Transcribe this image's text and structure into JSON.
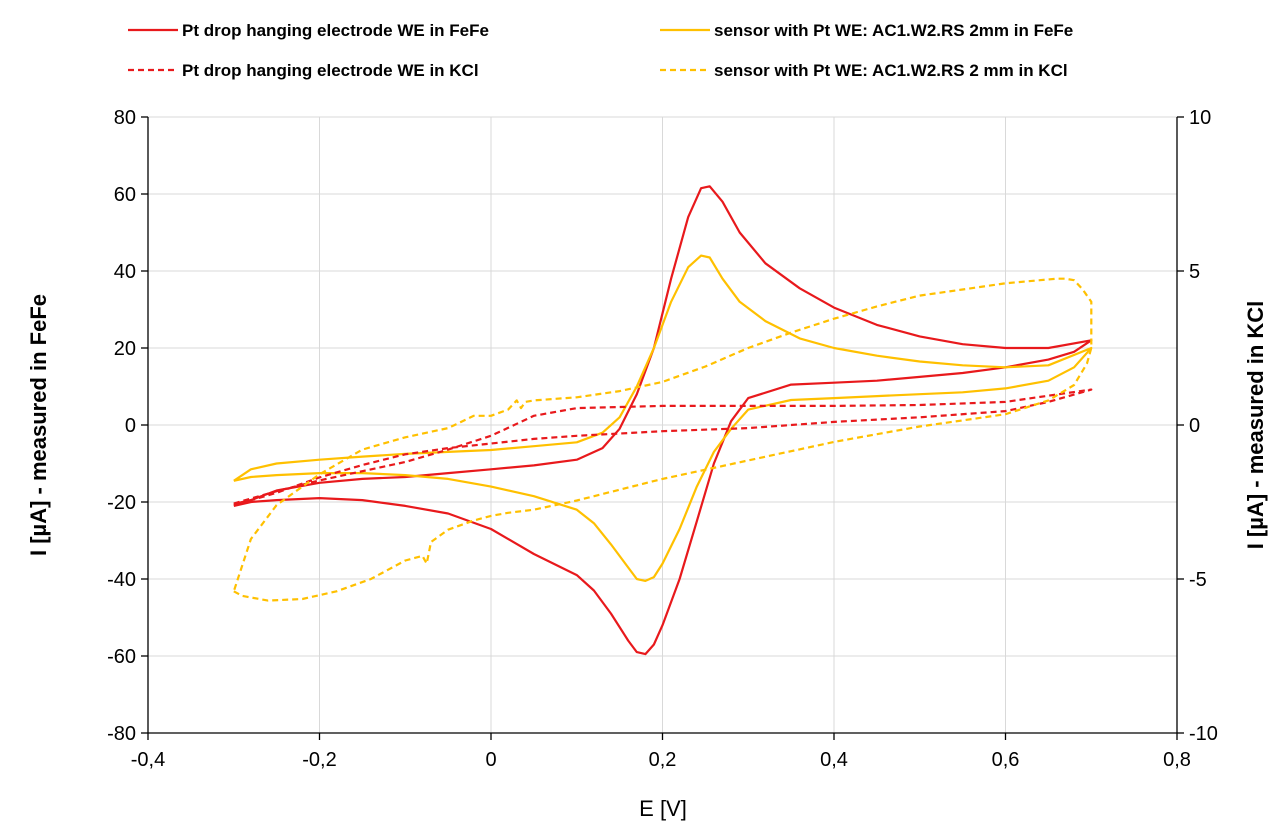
{
  "chart_data": {
    "type": "line",
    "xlabel": "E [V]",
    "ylabel": "I [µA] - measured in FeFe",
    "y2label": "I [µA] - measured in KCl",
    "xlim": [
      -0.4,
      0.8
    ],
    "ylim": [
      -80,
      80
    ],
    "y2lim": [
      -10,
      10
    ],
    "x_ticks": [
      -0.4,
      -0.2,
      0,
      0.2,
      0.4,
      0.6,
      0.8
    ],
    "x_tick_labels": [
      "-0,4",
      "-0,2",
      "0",
      "0,2",
      "0,4",
      "0,6",
      "0,8"
    ],
    "y_ticks": [
      -80,
      -60,
      -40,
      -20,
      0,
      20,
      40,
      60,
      80
    ],
    "y_tick_labels": [
      "-80",
      "-60",
      "-40",
      "-20",
      "0",
      "20",
      "40",
      "60",
      "80"
    ],
    "y2_ticks": [
      -10,
      -5,
      0,
      5,
      10
    ],
    "y2_tick_labels": [
      "-10",
      "-5",
      "0",
      "5",
      "10"
    ],
    "grid": true,
    "legend_position": "top",
    "series": [
      {
        "name": "Pt drop hanging electrode WE in FeFe",
        "color": "#e8191c",
        "dash": "solid",
        "axis": "left",
        "x": [
          -0.3,
          -0.28,
          -0.25,
          -0.2,
          -0.15,
          -0.1,
          -0.05,
          0,
          0.05,
          0.1,
          0.13,
          0.15,
          0.17,
          0.19,
          0.21,
          0.23,
          0.245,
          0.255,
          0.27,
          0.29,
          0.32,
          0.36,
          0.4,
          0.45,
          0.5,
          0.55,
          0.6,
          0.65,
          0.7,
          0.7,
          0.68,
          0.65,
          0.6,
          0.55,
          0.5,
          0.45,
          0.4,
          0.35,
          0.3,
          0.28,
          0.26,
          0.24,
          0.22,
          0.2,
          0.19,
          0.18,
          0.17,
          0.16,
          0.14,
          0.12,
          0.1,
          0.05,
          0,
          -0.05,
          -0.1,
          -0.15,
          -0.2,
          -0.25,
          -0.28,
          -0.3
        ],
        "y": [
          -20.5,
          -19.5,
          -17,
          -15,
          -14,
          -13.5,
          -12.5,
          -11.5,
          -10.5,
          -9,
          -6,
          -1,
          8,
          20,
          38,
          54,
          61.5,
          62,
          58,
          50,
          42,
          35.5,
          30.5,
          26,
          23,
          21,
          20,
          20,
          22,
          22,
          19,
          17,
          15,
          13.5,
          12.5,
          11.5,
          11,
          10.5,
          7,
          1,
          -10,
          -25,
          -40,
          -52,
          -57,
          -59.5,
          -59,
          -56,
          -49,
          -43,
          -39,
          -33.5,
          -27,
          -23,
          -21,
          -19.5,
          -19,
          -19.5,
          -20,
          -21
        ]
      },
      {
        "name": "sensor with Pt WE: AC1.W2.RS 2mm in FeFe",
        "color": "#ffc000",
        "dash": "solid",
        "axis": "left",
        "x": [
          -0.3,
          -0.28,
          -0.25,
          -0.2,
          -0.15,
          -0.1,
          -0.05,
          0,
          0.05,
          0.1,
          0.13,
          0.15,
          0.17,
          0.19,
          0.21,
          0.23,
          0.245,
          0.255,
          0.27,
          0.29,
          0.32,
          0.36,
          0.4,
          0.45,
          0.5,
          0.55,
          0.6,
          0.65,
          0.7,
          0.7,
          0.68,
          0.65,
          0.6,
          0.55,
          0.5,
          0.45,
          0.4,
          0.35,
          0.3,
          0.28,
          0.26,
          0.24,
          0.22,
          0.2,
          0.19,
          0.18,
          0.17,
          0.16,
          0.14,
          0.12,
          0.1,
          0.05,
          0,
          -0.05,
          -0.1,
          -0.15,
          -0.2,
          -0.25,
          -0.28,
          -0.3
        ],
        "y": [
          -14.5,
          -11.5,
          -10,
          -9,
          -8.2,
          -7.5,
          -7,
          -6.5,
          -5.5,
          -4.5,
          -2,
          2,
          10,
          20,
          32,
          41,
          44,
          43.5,
          38,
          32,
          27,
          22.5,
          20,
          18,
          16.5,
          15.5,
          15,
          15.5,
          20,
          20,
          15,
          11.5,
          9.5,
          8.5,
          8,
          7.5,
          7,
          6.5,
          4,
          -1,
          -7,
          -16,
          -27,
          -36,
          -39.5,
          -40.5,
          -40,
          -37,
          -31,
          -25.5,
          -22,
          -18.5,
          -16,
          -14,
          -13,
          -12.5,
          -12.5,
          -13,
          -13.5,
          -14.5
        ]
      },
      {
        "name": "Pt drop hanging electrode WE in KCl",
        "color": "#e8191c",
        "dash": "dashed",
        "axis": "right",
        "x": [
          -0.3,
          -0.25,
          -0.2,
          -0.15,
          -0.1,
          -0.05,
          0,
          0.05,
          0.1,
          0.2,
          0.3,
          0.4,
          0.5,
          0.6,
          0.65,
          0.7,
          0.7,
          0.65,
          0.6,
          0.5,
          0.4,
          0.3,
          0.2,
          0.1,
          0.05,
          0,
          -0.05,
          -0.1,
          -0.15,
          -0.2,
          -0.25,
          -0.3
        ],
        "y": [
          -2.55,
          -2.15,
          -1.8,
          -1.5,
          -1.2,
          -0.8,
          -0.35,
          0.3,
          0.55,
          0.62,
          0.62,
          0.62,
          0.65,
          0.75,
          0.95,
          1.15,
          1.15,
          0.75,
          0.45,
          0.25,
          0.1,
          -0.1,
          -0.2,
          -0.35,
          -0.45,
          -0.6,
          -0.75,
          -0.95,
          -1.3,
          -1.7,
          -2.2,
          -2.6
        ]
      },
      {
        "name": "sensor with Pt WE: AC1.W2.RS 2 mm in KCl",
        "color": "#ffc000",
        "dash": "dashed",
        "axis": "right",
        "x": [
          -0.3,
          -0.29,
          -0.26,
          -0.22,
          -0.18,
          -0.14,
          -0.1,
          -0.08,
          -0.075,
          -0.07,
          -0.05,
          -0.02,
          0,
          0.02,
          0.05,
          0.1,
          0.15,
          0.2,
          0.25,
          0.3,
          0.35,
          0.4,
          0.45,
          0.5,
          0.55,
          0.6,
          0.65,
          0.68,
          0.695,
          0.7,
          0.7,
          0.69,
          0.68,
          0.67,
          0.66,
          0.64,
          0.6,
          0.55,
          0.5,
          0.45,
          0.4,
          0.35,
          0.3,
          0.25,
          0.2,
          0.15,
          0.1,
          0.05,
          0.04,
          0.035,
          0.03,
          0.02,
          0,
          -0.02,
          -0.05,
          -0.1,
          -0.15,
          -0.2,
          -0.25,
          -0.28,
          -0.3
        ],
        "y": [
          -5.4,
          -5.55,
          -5.7,
          -5.65,
          -5.4,
          -5,
          -4.4,
          -4.25,
          -4.5,
          -3.8,
          -3.4,
          -3.1,
          -2.95,
          -2.85,
          -2.75,
          -2.45,
          -2.1,
          -1.75,
          -1.45,
          -1.15,
          -0.85,
          -0.55,
          -0.3,
          -0.05,
          0.15,
          0.35,
          0.8,
          1.3,
          2,
          2.5,
          4,
          4.4,
          4.7,
          4.75,
          4.75,
          4.7,
          4.6,
          4.4,
          4.2,
          3.85,
          3.45,
          3,
          2.5,
          1.9,
          1.4,
          1.1,
          0.9,
          0.8,
          0.75,
          0.55,
          0.8,
          0.5,
          0.3,
          0.3,
          -0.1,
          -0.4,
          -0.8,
          -1.6,
          -2.6,
          -3.7,
          -5.4
        ]
      }
    ]
  }
}
